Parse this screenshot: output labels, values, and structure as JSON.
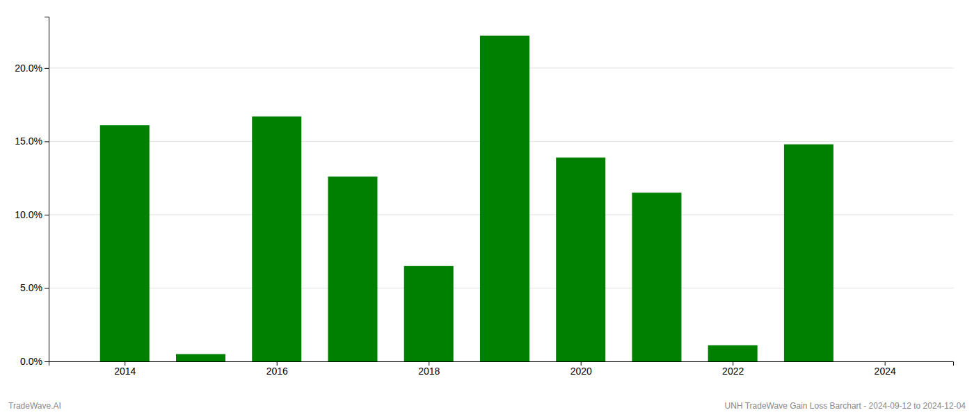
{
  "chart_data": {
    "type": "bar",
    "x": [
      2014,
      2015,
      2016,
      2017,
      2018,
      2019,
      2020,
      2021,
      2022,
      2023,
      2024
    ],
    "values": [
      0.161,
      0.005,
      0.167,
      0.126,
      0.065,
      0.222,
      0.139,
      0.115,
      0.011,
      0.148,
      0.0
    ],
    "color": "#008000",
    "xlim": [
      2013.0,
      2024.9
    ],
    "xticks": [
      2014,
      2016,
      2018,
      2020,
      2022,
      2024
    ],
    "ylim": [
      0,
      0.235
    ],
    "yticks": [
      {
        "value": 0.0,
        "label": "0.0%"
      },
      {
        "value": 0.05,
        "label": "5.0%"
      },
      {
        "value": 0.1,
        "label": "10.0%"
      },
      {
        "value": 0.15,
        "label": "15.0%"
      },
      {
        "value": 0.2,
        "label": "20.0%"
      }
    ],
    "grid": true,
    "annotations": [
      "TradeWave.AI",
      "UNH TradeWave Gain Loss Barchart - 2024-09-12 to 2024-12-04"
    ]
  }
}
